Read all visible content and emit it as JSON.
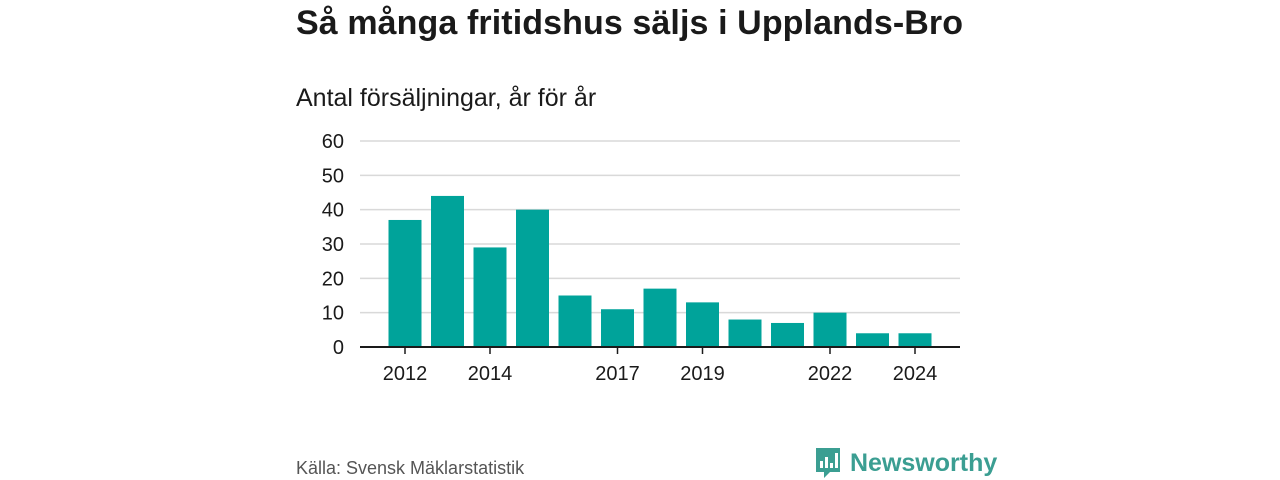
{
  "colors": {
    "bar": "#00A39A",
    "grid": "#d9d9d9",
    "axis": "#1a1a1a",
    "brand": "#3b9e92",
    "source_text": "#555555"
  },
  "chart_data": {
    "type": "bar",
    "title": "Så många fritidshus säljs i Upplands-Bro",
    "subtitle": "Antal försäljningar, år för år",
    "categories": [
      "2012",
      "2013",
      "2014",
      "2015",
      "2016",
      "2017",
      "2018",
      "2019",
      "2020",
      "2021",
      "2022",
      "2023",
      "2024"
    ],
    "values": [
      37,
      44,
      29,
      40,
      15,
      11,
      17,
      13,
      8,
      7,
      10,
      4,
      4
    ],
    "x_tick_labels": [
      "2012",
      "2014",
      "2017",
      "2019",
      "2022",
      "2024"
    ],
    "y_ticks": [
      0,
      10,
      20,
      30,
      40,
      50,
      60
    ],
    "ylim": [
      0,
      60
    ],
    "xlabel": "",
    "ylabel": "",
    "grid": true
  },
  "footer": {
    "source": "Källa: Svensk Mäklarstatistik",
    "brand": "Newsworthy",
    "brand_icon": "bar-chart-speech-bubble-icon"
  }
}
